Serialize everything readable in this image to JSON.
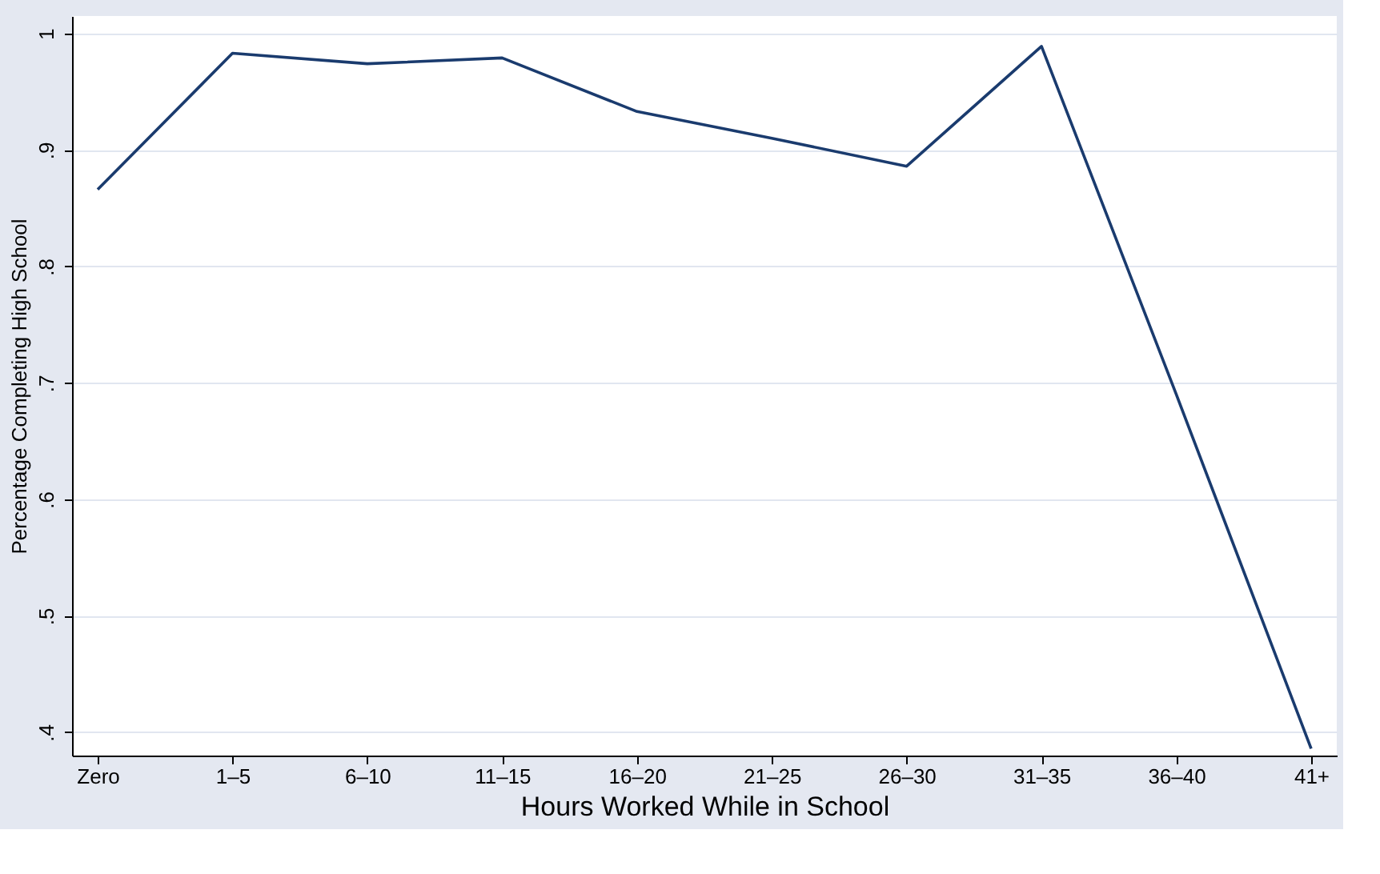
{
  "chart_data": {
    "type": "line",
    "xlabel": "Hours Worked While in School",
    "ylabel": "Percentage Completing High School",
    "categories": [
      "Zero",
      "1–5",
      "6–10",
      "11–15",
      "16–20",
      "21–25",
      "26–30",
      "31–35",
      "36–40",
      "41+"
    ],
    "series": [
      {
        "color": "#1a3b6e",
        "values": [
          0.866,
          0.983,
          0.974,
          0.979,
          0.933,
          0.91,
          0.886,
          0.989,
          0.69,
          0.386
        ]
      }
    ],
    "ylim": [
      0.38,
      1.015
    ],
    "yticks": [
      {
        "value": 0.4,
        "label": ".4"
      },
      {
        "value": 0.5,
        "label": ".5"
      },
      {
        "value": 0.6,
        "label": ".6"
      },
      {
        "value": 0.7,
        "label": ".7"
      },
      {
        "value": 0.8,
        "label": ".8"
      },
      {
        "value": 0.9,
        "label": ".9"
      },
      1
    ],
    "grid": "y",
    "marker": "none",
    "line_style": "solid",
    "legend": false
  }
}
